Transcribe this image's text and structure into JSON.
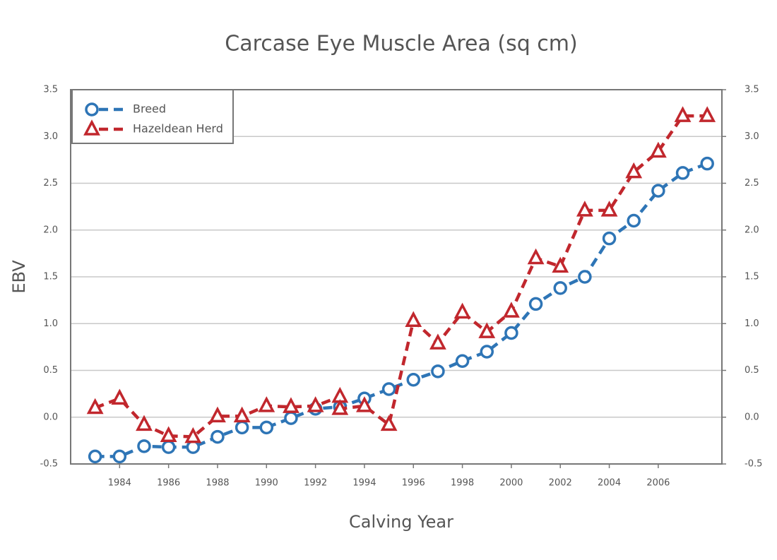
{
  "chart_data": {
    "type": "line",
    "title": "Carcase Eye Muscle Area (sq cm)",
    "xlabel": "Calving Year",
    "ylabel": "EBV",
    "xlim": [
      1982,
      2008.6
    ],
    "xticks": [
      1984,
      1986,
      1988,
      1990,
      1992,
      1994,
      1996,
      1998,
      2000,
      2002,
      2004,
      2006
    ],
    "ylim": [
      -0.5,
      3.5
    ],
    "yticks": [
      -0.5,
      {
        "value": 0,
        "label": "0.0"
      },
      0.5,
      {
        "value": 1,
        "label": "1.0"
      },
      1.5,
      {
        "value": 2,
        "label": "2.0"
      },
      2.5,
      {
        "value": 3,
        "label": "3.0"
      },
      3.5
    ],
    "y2lim": [
      -0.5,
      3.5
    ],
    "y2ticks": [
      -0.5,
      {
        "value": 0,
        "label": "0.0"
      },
      0.5,
      {
        "value": 1,
        "label": "1.0"
      },
      1.5,
      {
        "value": 2,
        "label": "2.0"
      },
      2.5,
      {
        "value": 3,
        "label": "3.0"
      },
      3.5
    ],
    "grid": true,
    "legend": "upper left",
    "series": [
      {
        "name": "Breed",
        "color": "#2e75b6",
        "marker": "circle",
        "x": [
          1983,
          1984,
          1985,
          1986,
          1987,
          1988,
          1989,
          1990,
          1991,
          1992,
          1993,
          1994,
          1995,
          1996,
          1997,
          1998,
          1999,
          2000,
          2001,
          2002,
          2003,
          2004,
          2005,
          2006,
          2007,
          2008
        ],
        "values": [
          -0.42,
          -0.42,
          -0.31,
          -0.32,
          -0.32,
          -0.21,
          -0.11,
          -0.11,
          -0.01,
          0.09,
          0.11,
          0.2,
          0.3,
          0.4,
          0.49,
          0.6,
          0.7,
          0.9,
          1.21,
          1.38,
          1.5,
          1.91,
          2.1,
          2.42,
          2.61,
          2.71
        ]
      },
      {
        "name": "Hazeldean Herd",
        "color": "#c1272d",
        "marker": "triangle",
        "x": [
          1983,
          1984,
          1985,
          1986,
          1987,
          1988,
          1989,
          1990,
          1991,
          1992,
          1993,
          1993,
          1994,
          1995,
          1996,
          1997,
          1998,
          1999,
          2000,
          2001,
          2002,
          2003,
          2004,
          2005,
          2006,
          2007,
          2008
        ],
        "values": [
          0.1,
          0.2,
          -0.08,
          -0.2,
          -0.21,
          0.01,
          0.01,
          0.12,
          0.11,
          0.12,
          0.22,
          0.09,
          0.12,
          -0.08,
          1.03,
          0.79,
          1.12,
          0.91,
          1.13,
          1.7,
          1.61,
          2.21,
          2.21,
          2.62,
          2.84,
          3.22,
          3.22
        ]
      }
    ]
  }
}
